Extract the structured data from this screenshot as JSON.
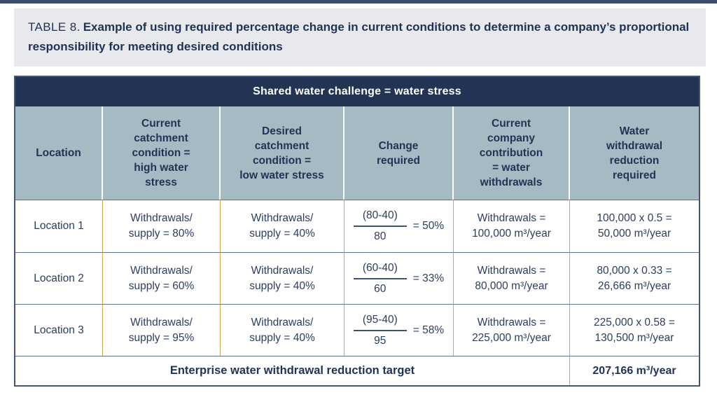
{
  "colors": {
    "navy_banner": "#223353",
    "column_header_bg": "#a6bac4",
    "gold_divider": "#cfac49",
    "slate_border": "#435673",
    "title_band_bg": "#e8e9ed",
    "text_navy": "#2c3e60"
  },
  "title": {
    "label": "TABLE 8.",
    "text": "Example of using required percentage change in current conditions to determine a company’s proportional responsibility for meeting desired conditions"
  },
  "table": {
    "banner": "Shared water challenge = water stress",
    "columns": [
      "Location",
      "Current\ncatchment\ncondition =\nhigh water\nstress",
      "Desired\ncatchment\ncondition =\nlow water stress",
      "Change\nrequired",
      "Current\ncompany\ncontribution\n= water\nwithdrawals",
      "Water\nwithdrawal\nreduction\nrequired"
    ],
    "rows": [
      {
        "location": "Location 1",
        "current": "Withdrawals/\nsupply = 80%",
        "desired": "Withdrawals/\nsupply = 40%",
        "change": {
          "numerator": "(80-40)",
          "denominator": "80",
          "result": "= 50%"
        },
        "contribution": "Withdrawals =\n100,000 m³/year",
        "reduction": "100,000 x 0.5 =\n50,000 m³/year"
      },
      {
        "location": "Location 2",
        "current": "Withdrawals/\nsupply = 60%",
        "desired": "Withdrawals/\nsupply = 40%",
        "change": {
          "numerator": "(60-40)",
          "denominator": "60",
          "result": "= 33%"
        },
        "contribution": "Withdrawals =\n80,000 m³/year",
        "reduction": "80,000 x 0.33 =\n26,666 m³/year"
      },
      {
        "location": "Location 3",
        "current": "Withdrawals/\nsupply = 95%",
        "desired": "Withdrawals/\nsupply = 40%",
        "change": {
          "numerator": "(95-40)",
          "denominator": "95",
          "result": "= 58%"
        },
        "contribution": "Withdrawals =\n225,000 m³/year",
        "reduction": "225,000 x 0.58 =\n130,500 m³/year"
      }
    ],
    "footer": {
      "label": "Enterprise water withdrawal reduction target",
      "value": "207,166 m³/year"
    }
  }
}
